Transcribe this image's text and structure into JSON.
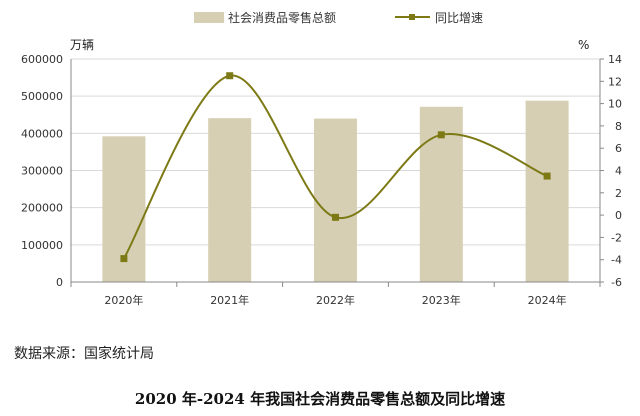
{
  "chart_data": {
    "type": "bar+line",
    "categories": [
      "2020年",
      "2021年",
      "2022年",
      "2023年",
      "2024年"
    ],
    "series": [
      {
        "name": "社会消费品零售总额",
        "type": "bar",
        "axis": "left",
        "color": "#d6cfb4",
        "values": [
          391981,
          440823,
          439733,
          471495,
          487895
        ]
      },
      {
        "name": "同比增速",
        "type": "line",
        "axis": "right",
        "color": "#7d7a16",
        "values": [
          -3.9,
          12.5,
          -0.2,
          7.2,
          3.5
        ]
      }
    ],
    "left_axis": {
      "unit": "万辆",
      "min": 0,
      "max": 600000,
      "step": 100000,
      "ticks": [
        "0",
        "100000",
        "200000",
        "300000",
        "400000",
        "500000",
        "600000"
      ]
    },
    "right_axis": {
      "unit": "%",
      "min": -6,
      "max": 14,
      "step": 2,
      "ticks": [
        "-6",
        "-4",
        "-2",
        "0",
        "2",
        "4",
        "6",
        "8",
        "10",
        "12",
        "14"
      ]
    },
    "grid": true,
    "legend_position": "top-center"
  },
  "source_text": "数据来源：国家统计局",
  "caption": "2020 年-2024 年我国社会消费品零售总额及同比增速"
}
